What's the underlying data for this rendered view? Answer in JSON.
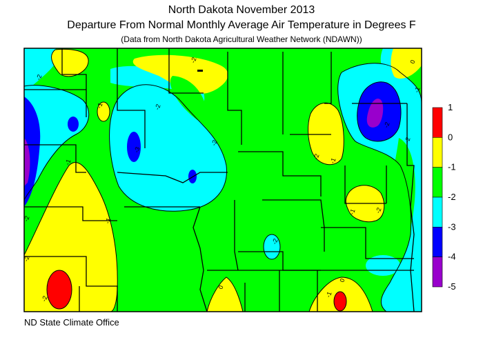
{
  "title": "North Dakota November 2013",
  "subtitle": "Departure From Normal Monthly Average Air Temperature in Degrees F",
  "source": "(Data from North Dakota Agricultural Weather Network (NDAWN))",
  "footer": "ND State Climate Office",
  "legend": {
    "labels": [
      "1",
      "0",
      "-1",
      "-2",
      "-3",
      "-4",
      "-5"
    ],
    "colors": [
      "#ff0000",
      "#ffff00",
      "#00ff00",
      "#00ffff",
      "#0000ff",
      "#9900cc"
    ]
  },
  "contour_labels": [
    "-2",
    "-2",
    "-2",
    "-1",
    "-1",
    "-2",
    "-2",
    "-2",
    "-3",
    "-1",
    "-2",
    "-2",
    "-2",
    "-1",
    "-2",
    "0",
    "-1",
    "-2",
    "-2",
    "-1",
    "0",
    "-1",
    "0"
  ],
  "palette": {
    "red": "#ff0000",
    "yellow": "#ffff00",
    "green": "#00ff00",
    "cyan": "#00ffff",
    "blue": "#0000ff",
    "purple": "#9900cc"
  }
}
